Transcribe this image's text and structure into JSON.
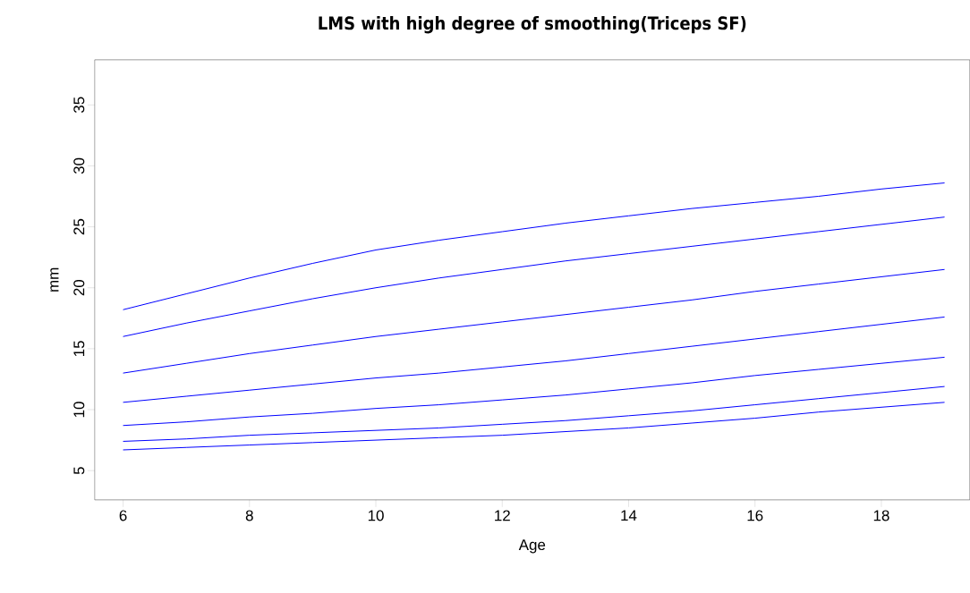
{
  "chart_data": {
    "type": "line",
    "title": "LMS with high degree of smoothing(Triceps SF)",
    "xlabel": "Age",
    "ylabel": "mm",
    "x": [
      6,
      7,
      8,
      9,
      10,
      11,
      12,
      13,
      14,
      15,
      16,
      17,
      18,
      19
    ],
    "series": [
      {
        "color": "#0000ff",
        "values": [
          18.2,
          19.5,
          20.8,
          22.0,
          23.1,
          23.9,
          24.6,
          25.3,
          25.9,
          26.5,
          27.0,
          27.5,
          28.1,
          28.6
        ]
      },
      {
        "color": "#0000ff",
        "values": [
          16.0,
          17.1,
          18.1,
          19.1,
          20.0,
          20.8,
          21.5,
          22.2,
          22.8,
          23.4,
          24.0,
          24.6,
          25.2,
          25.8
        ]
      },
      {
        "color": "#0000ff",
        "values": [
          13.0,
          13.8,
          14.6,
          15.3,
          16.0,
          16.6,
          17.2,
          17.8,
          18.4,
          19.0,
          19.7,
          20.3,
          20.9,
          21.5
        ]
      },
      {
        "color": "#0000ff",
        "values": [
          10.6,
          11.1,
          11.6,
          12.1,
          12.6,
          13.0,
          13.5,
          14.0,
          14.6,
          15.2,
          15.8,
          16.4,
          17.0,
          17.6
        ]
      },
      {
        "color": "#0000ff",
        "values": [
          8.7,
          9.0,
          9.4,
          9.7,
          10.1,
          10.4,
          10.8,
          11.2,
          11.7,
          12.2,
          12.8,
          13.3,
          13.8,
          14.3
        ]
      },
      {
        "color": "#0000ff",
        "values": [
          7.4,
          7.6,
          7.9,
          8.1,
          8.3,
          8.5,
          8.8,
          9.1,
          9.5,
          9.9,
          10.4,
          10.9,
          11.4,
          11.9
        ]
      },
      {
        "color": "#0000ff",
        "values": [
          6.7,
          6.9,
          7.1,
          7.3,
          7.5,
          7.7,
          7.9,
          8.2,
          8.5,
          8.9,
          9.3,
          9.8,
          10.2,
          10.6
        ]
      }
    ],
    "xlim": [
      5.55,
      19.4
    ],
    "ylim": [
      2.6,
      38.7
    ],
    "xticks": [
      6,
      8,
      10,
      12,
      14,
      16,
      18
    ],
    "yticks": [
      5,
      10,
      15,
      20,
      25,
      30,
      35
    ],
    "grid": false,
    "marker": "none",
    "line_style": "solid"
  }
}
